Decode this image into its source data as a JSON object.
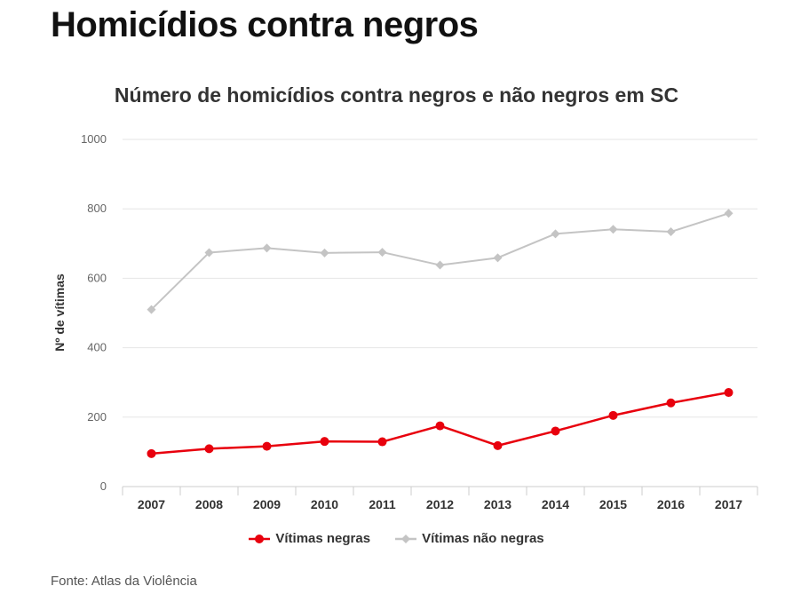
{
  "headline": "Homicídios contra negros",
  "source": "Fonte: Atlas da Violência",
  "colors": {
    "negras": "#e8000d",
    "nao_negras": "#c4c4c4",
    "grid": "#e6e6e6",
    "axis": "#cccccc"
  },
  "chart_data": {
    "type": "line",
    "title": "Número de homicídios contra negros e não negros em SC",
    "xlabel": "",
    "ylabel": "Nº de vítimas",
    "ylim": [
      0,
      1000
    ],
    "yticks": [
      "0",
      "200",
      "400",
      "600",
      "800",
      "1000"
    ],
    "categories": [
      "2007",
      "2008",
      "2009",
      "2010",
      "2011",
      "2012",
      "2013",
      "2014",
      "2015",
      "2016",
      "2017"
    ],
    "grid": true,
    "legend_position": "bottom",
    "series": [
      {
        "name": "Vítimas negras",
        "color": "#e8000d",
        "marker": "circle",
        "values": [
          95,
          109,
          116,
          130,
          129,
          175,
          118,
          160,
          205,
          241,
          271
        ]
      },
      {
        "name": "Vítimas não negras",
        "color": "#c4c4c4",
        "marker": "diamond",
        "values": [
          510,
          674,
          687,
          673,
          675,
          638,
          659,
          728,
          741,
          734,
          787
        ]
      }
    ]
  }
}
